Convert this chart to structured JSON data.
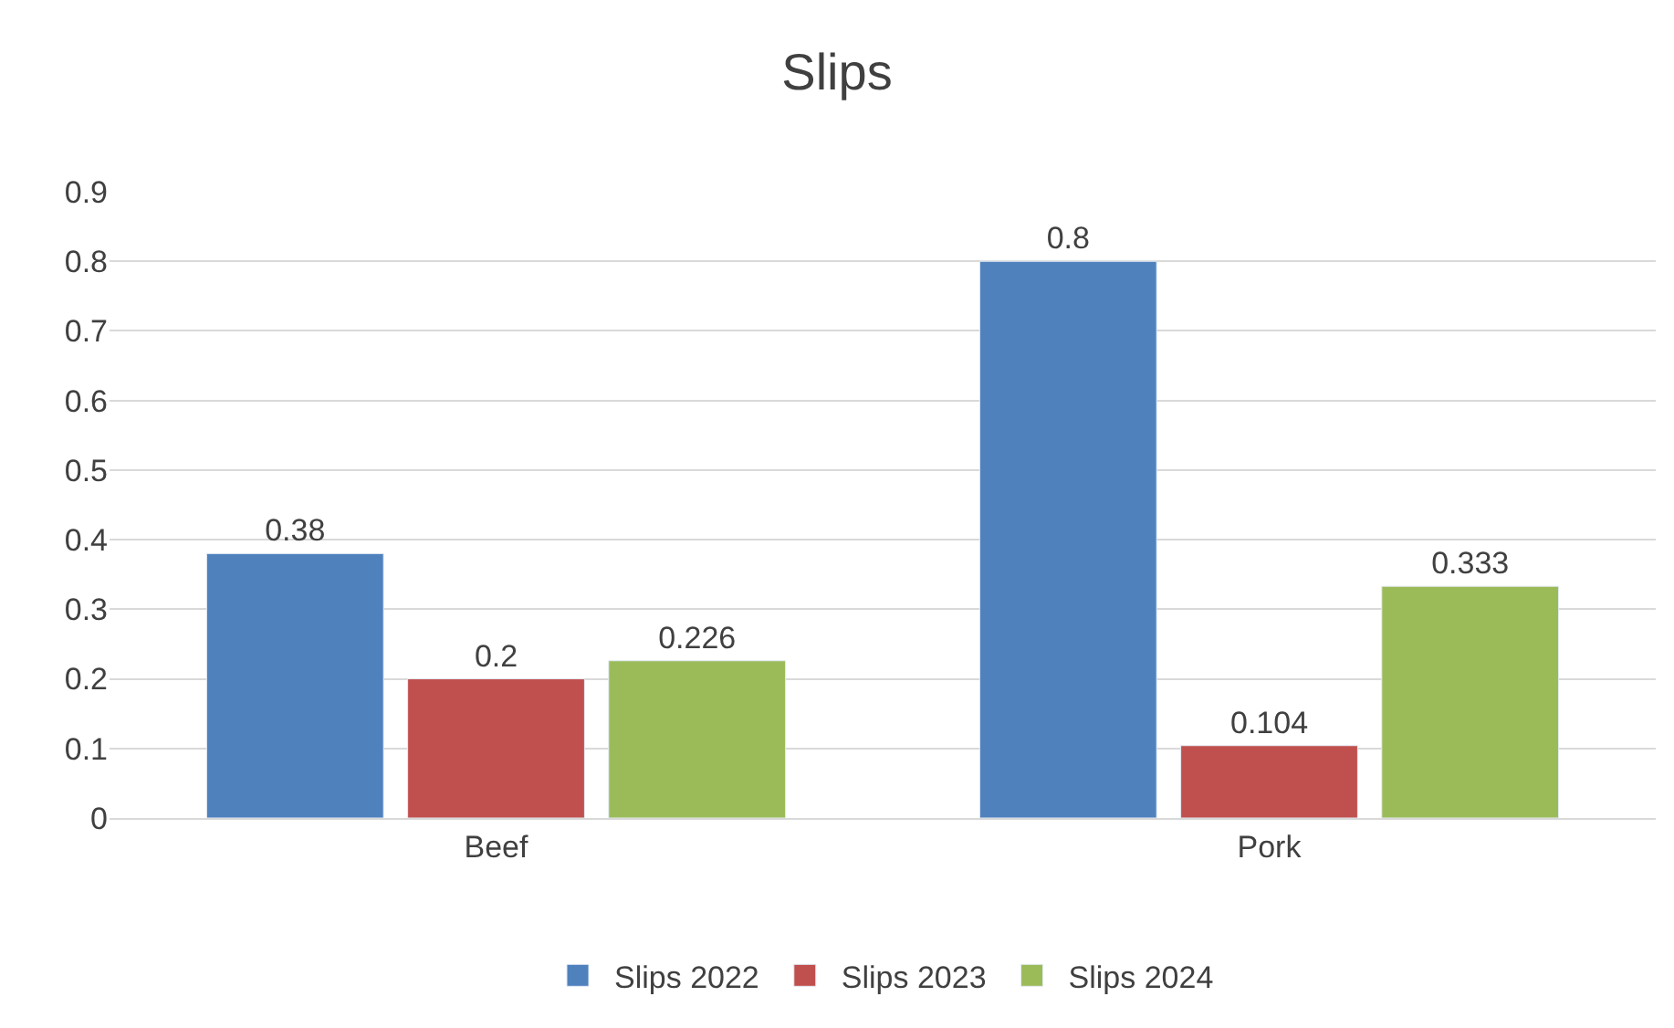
{
  "chart_data": {
    "type": "bar",
    "title": "Slips",
    "categories": [
      "Beef",
      "Pork"
    ],
    "series": [
      {
        "name": "Slips 2022",
        "color": "#4f81bd",
        "values": [
          0.38,
          0.8
        ]
      },
      {
        "name": "Slips 2023",
        "color": "#c0504d",
        "values": [
          0.2,
          0.104
        ]
      },
      {
        "name": "Slips 2024",
        "color": "#9bbb59",
        "values": [
          0.226,
          0.333
        ]
      }
    ],
    "ylim": [
      0,
      0.9
    ],
    "yticks": [
      {
        "value": 0,
        "label": "0"
      },
      0.1,
      0.2,
      0.3,
      0.4,
      0.5,
      0.6,
      0.7,
      0.8,
      0.9
    ],
    "grid": "y",
    "legend": "bottom",
    "data_labels": true
  }
}
